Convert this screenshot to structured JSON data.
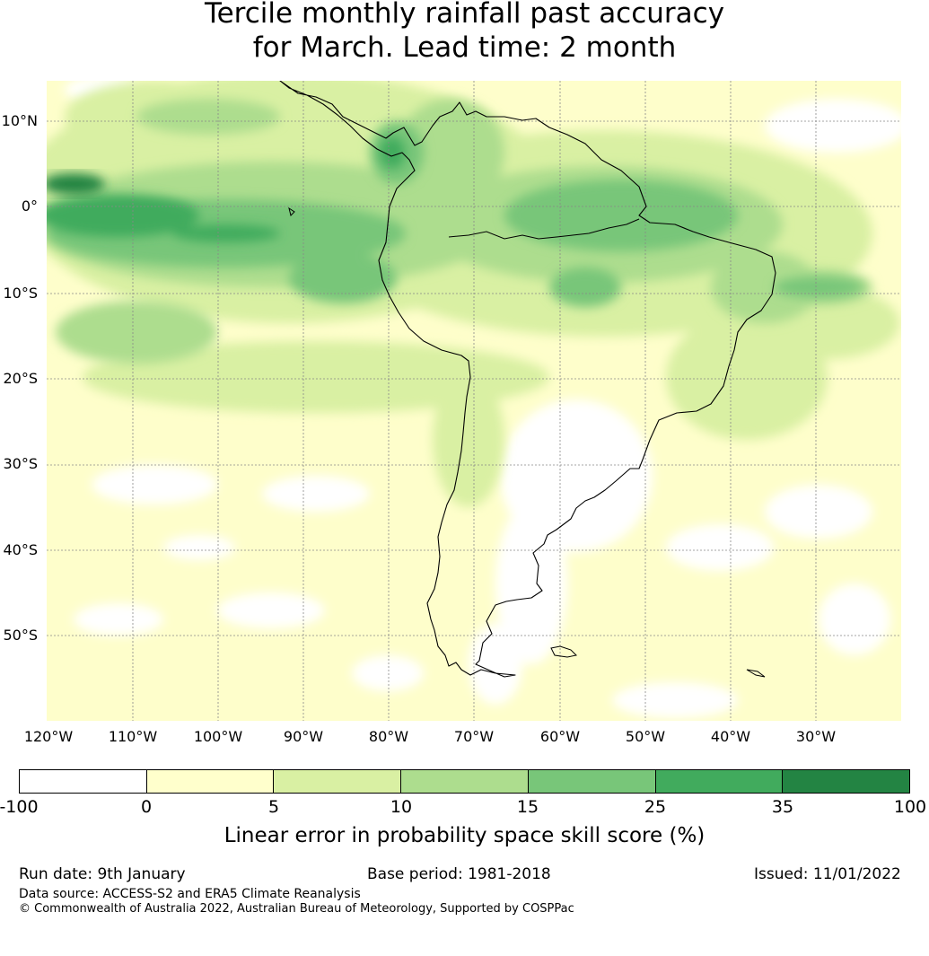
{
  "title": {
    "line1": "Tercile monthly rainfall past accuracy",
    "line2": "for March. Lead time: 2 month"
  },
  "map": {
    "latitude_labels": [
      "10°N",
      "0°",
      "10°S",
      "20°S",
      "30°S",
      "40°S",
      "50°S"
    ],
    "longitude_labels": [
      "120°W",
      "110°W",
      "100°W",
      "90°W",
      "80°W",
      "70°W",
      "60°W",
      "50°W",
      "40°W",
      "30°W"
    ],
    "colors": {
      "ocean_base": "#fefecb",
      "land_base": "#f2f9c4",
      "coastline": "#000000",
      "gridline": "#888888"
    }
  },
  "legend": {
    "tick_labels": [
      "-100",
      "0",
      "5",
      "10",
      "15",
      "25",
      "35",
      "100"
    ],
    "colors": [
      "#ffffff",
      "#ffffcc",
      "#d9f0a3",
      "#addd8e",
      "#78c679",
      "#41ab5d",
      "#238443"
    ],
    "label": "Linear error in probability space skill score (%)"
  },
  "footer": {
    "run_date": "Run date: 9th January",
    "base_period": "Base period: 1981-2018",
    "issued": "Issued: 11/01/2022",
    "data_source": "Data source: ACCESS-S2 and ERA5 Climate Reanalysis",
    "copyright": "© Commonwealth of Australia 2022, Australian Bureau of Meteorology, Supported by COSPPac"
  }
}
